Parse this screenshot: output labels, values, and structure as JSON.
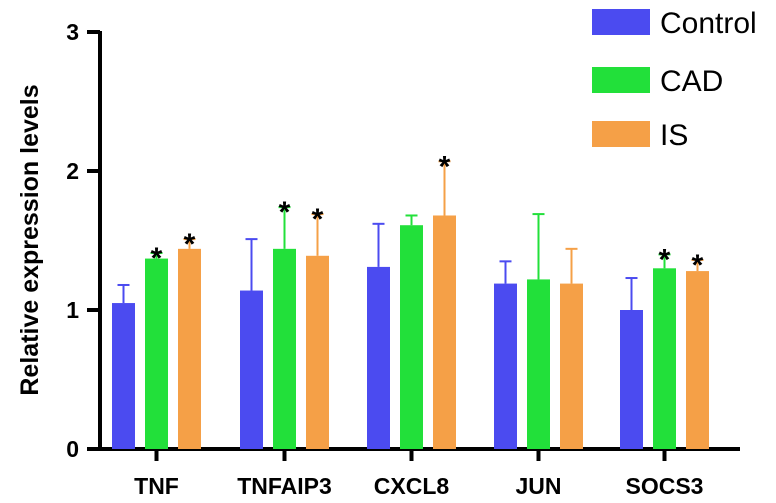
{
  "chart_data": {
    "type": "bar",
    "categories": [
      "TNF",
      "TNFAIP3",
      "CXCL8",
      "JUN",
      "SOCS3"
    ],
    "series": [
      {
        "name": "Control",
        "color": "#4B4BF0",
        "values": [
          1.05,
          1.14,
          1.31,
          1.19,
          1.0
        ],
        "errors": [
          0.13,
          0.37,
          0.31,
          0.16,
          0.23
        ],
        "significant": [
          false,
          false,
          false,
          false,
          false
        ]
      },
      {
        "name": "CAD",
        "color": "#22E03A",
        "values": [
          1.37,
          1.44,
          1.61,
          1.22,
          1.3
        ],
        "errors": [
          0.04,
          0.3,
          0.07,
          0.47,
          0.1
        ],
        "significant": [
          true,
          true,
          false,
          false,
          true
        ]
      },
      {
        "name": "IS",
        "color": "#F5A047",
        "values": [
          1.44,
          1.39,
          1.68,
          1.19,
          1.28
        ],
        "errors": [
          0.07,
          0.3,
          0.39,
          0.25,
          0.08
        ],
        "significant": [
          true,
          true,
          true,
          false,
          true
        ]
      }
    ],
    "ylabel": "Relative expression levels",
    "xlabel": "",
    "ylim": [
      0,
      3
    ],
    "yticks": [
      "0",
      "1",
      "2",
      "3"
    ],
    "significance_marker": "*",
    "legend": "top-right",
    "grid": false
  }
}
